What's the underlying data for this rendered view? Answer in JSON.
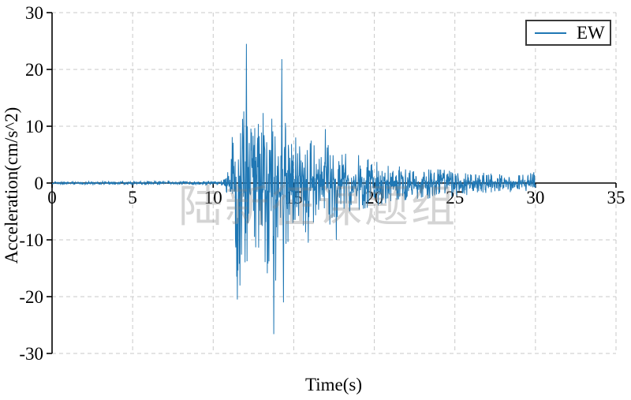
{
  "watermark": {
    "text": "陆新征课题组",
    "color": "rgba(128,128,128,0.34)"
  },
  "legend": {
    "label": "EW",
    "border_color": "#3a3a3a",
    "line_color": "#1f77b4"
  },
  "chart_data": {
    "type": "line",
    "title": "",
    "xlabel": "Time(s)",
    "ylabel": "Acceleration(cm/s^2)",
    "xlim": [
      0,
      35
    ],
    "ylim": [
      -30,
      30
    ],
    "x_ticks": [
      0,
      5,
      10,
      15,
      20,
      25,
      30,
      35
    ],
    "y_ticks": [
      30,
      20,
      10,
      0,
      -10,
      -20,
      -30
    ],
    "grid": "dashed",
    "grid_color": "#c9c9c9",
    "axis_color": "#000000",
    "legend_position": "upper-right",
    "render_seed": 9,
    "series": [
      {
        "name": "EW",
        "color": "#1f77b4",
        "description": "Earthquake ground-motion acceleration record, East-West component: quiet until ~10.9 s, strong shaking 11-15 s, decaying coda until record end at 30 s",
        "peak_acceleration_positive": 24.5,
        "peak_acceleration_negative": -26.6,
        "duration_s": 30,
        "sample_dt_s": 0.02,
        "envelope": {
          "t": [
            0,
            4,
            9,
            10.5,
            10.9,
            11.1,
            11.3,
            11.5,
            11.8,
            12.05,
            12.3,
            12.6,
            12.9,
            13.2,
            13.5,
            13.75,
            14.0,
            14.25,
            14.5,
            14.75,
            15.0,
            15.3,
            15.6,
            15.9,
            16.3,
            16.7,
            17.0,
            17.4,
            17.7,
            18.0,
            18.5,
            19.0,
            19.5,
            20.0,
            20.5,
            21.0,
            21.5,
            22.0,
            23.0,
            24.0,
            25.0,
            26.0,
            27.0,
            28.0,
            29.0,
            29.6,
            30.0
          ],
          "pos": [
            0.25,
            0.3,
            0.35,
            0.4,
            2,
            6,
            13,
            14,
            18,
            24.5,
            13,
            10,
            13,
            16,
            13,
            12,
            17,
            21.8,
            13,
            14.5,
            9,
            8,
            7,
            9,
            7,
            7,
            9.5,
            6,
            6,
            7,
            6,
            5,
            4.5,
            4,
            3.5,
            3,
            3,
            3,
            2.5,
            2.5,
            2,
            2,
            1.8,
            1.5,
            1.5,
            1.8,
            2.5
          ],
          "neg": [
            0.25,
            0.3,
            0.35,
            0.4,
            2,
            6,
            10,
            20.5,
            16,
            14,
            17,
            12,
            13,
            14,
            18,
            26.6,
            15,
            21,
            12,
            10,
            9,
            8,
            8,
            10.5,
            7,
            7,
            7,
            10,
            6,
            6,
            5,
            5,
            4.5,
            4.5,
            4,
            3.5,
            3.5,
            3,
            3,
            2.5,
            2.5,
            2,
            2,
            1.8,
            1.5,
            1.5,
            2.2
          ]
        },
        "key_peaks": [
          [
            11.5,
            -20.5
          ],
          [
            12.05,
            24.5
          ],
          [
            13.75,
            -26.6
          ],
          [
            14.25,
            21.8
          ],
          [
            14.35,
            -21.0
          ],
          [
            15.9,
            -10.5
          ],
          [
            16.95,
            9.5
          ],
          [
            17.65,
            -10.0
          ]
        ]
      }
    ]
  }
}
